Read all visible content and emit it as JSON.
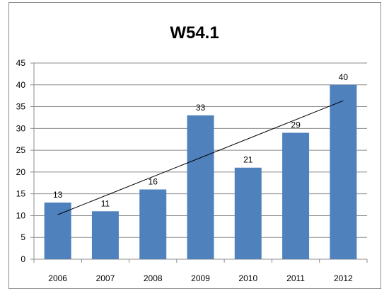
{
  "chart_data": {
    "type": "bar",
    "title": "W54.1",
    "xlabel": "",
    "ylabel": "",
    "categories": [
      "2006",
      "2007",
      "2008",
      "2009",
      "2010",
      "2011",
      "2012"
    ],
    "values": [
      13,
      11,
      16,
      33,
      21,
      29,
      40
    ],
    "ylim": [
      0,
      45
    ],
    "yticks": [
      0,
      5,
      10,
      15,
      20,
      25,
      30,
      35,
      40,
      45
    ],
    "grid": true,
    "legend": "none",
    "data_labels": true,
    "trendline": "linear",
    "colors": {
      "bar": "#4f81bd",
      "grid": "#8c8c8c",
      "trendline": "#000000"
    }
  }
}
